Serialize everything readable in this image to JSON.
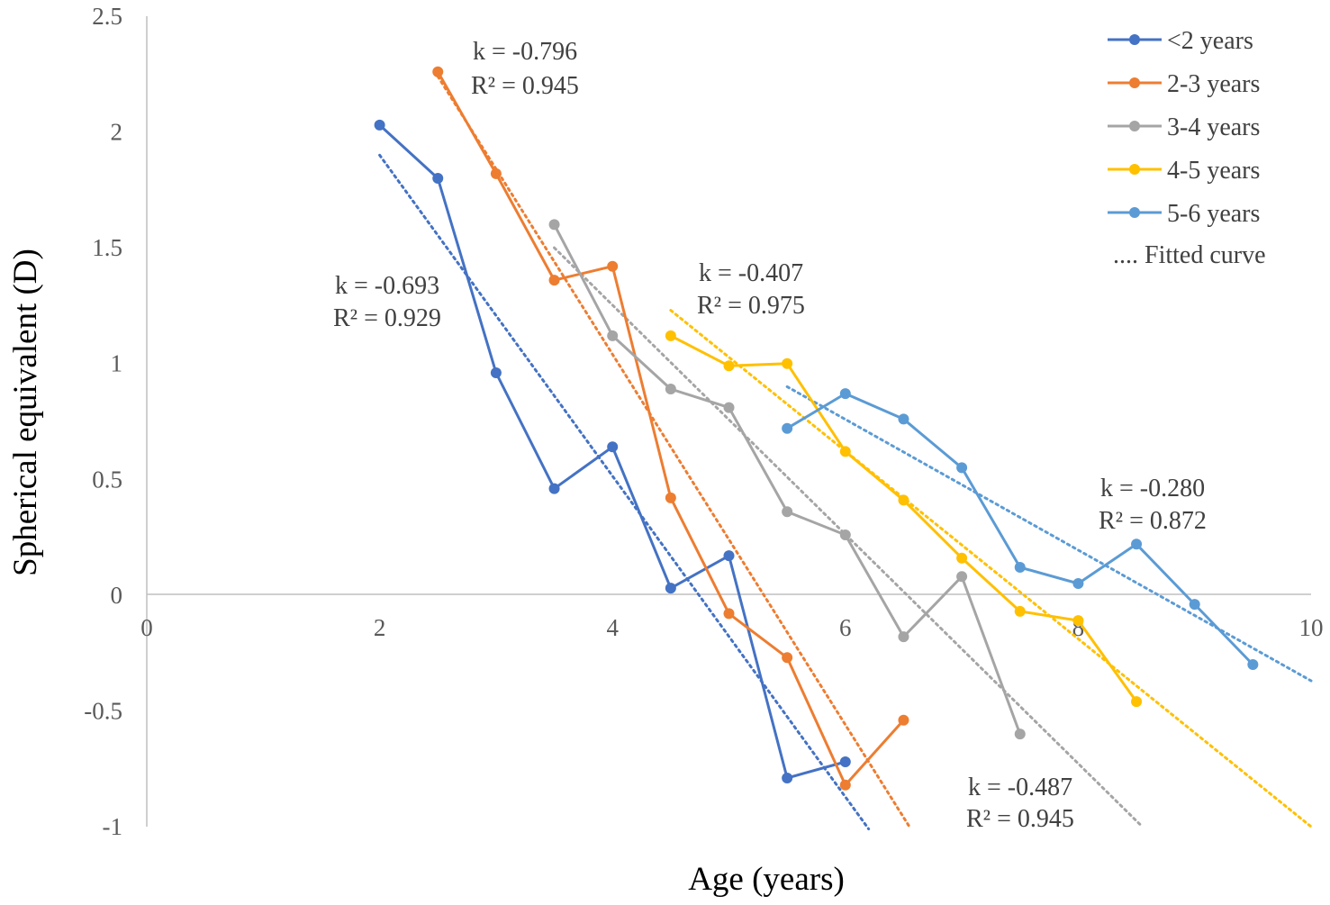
{
  "chart_data": {
    "type": "line",
    "title": "",
    "xlabel": "Age (years)",
    "ylabel": "Spherical equivalent (D)",
    "xlim": [
      0,
      10
    ],
    "ylim": [
      -1,
      2.5
    ],
    "xticks": [
      0,
      2,
      4,
      6,
      8,
      10
    ],
    "yticks": [
      -1,
      -0.5,
      0,
      0.5,
      1,
      1.5,
      2,
      2.5
    ],
    "xtick_labels": [
      "0",
      "2",
      "4",
      "6",
      "8",
      "10"
    ],
    "ytick_labels": [
      "-1",
      "-0.5",
      "0",
      "0.5",
      "1",
      "1.5",
      "2",
      "2.5"
    ],
    "grid": false,
    "legend_position": "top-right",
    "fitted_curve_label": ".... Fitted curve",
    "series": [
      {
        "name": "<2 years",
        "color": "#4472C4",
        "x": [
          2,
          2.5,
          3,
          3.5,
          4,
          4.5,
          5,
          5.5,
          6
        ],
        "y": [
          2.03,
          1.8,
          0.96,
          0.46,
          0.64,
          0.03,
          0.17,
          -0.79,
          -0.72
        ],
        "fit": {
          "x": [
            2,
            6.2
          ],
          "y": [
            1.9,
            -1.01
          ]
        }
      },
      {
        "name": "2-3 years",
        "color": "#ED7D31",
        "x": [
          2.5,
          3,
          3.5,
          4,
          4.5,
          5,
          5.5,
          6,
          6.5
        ],
        "y": [
          2.26,
          1.82,
          1.36,
          1.42,
          0.42,
          -0.08,
          -0.27,
          -0.82,
          -0.54
        ],
        "fit": {
          "x": [
            2.5,
            6.55
          ],
          "y": [
            2.24,
            -1.0
          ]
        }
      },
      {
        "name": "3-4 years",
        "color": "#A5A5A5",
        "x": [
          3.5,
          4,
          4.5,
          5,
          5.5,
          6,
          6.5,
          7,
          7.5
        ],
        "y": [
          1.6,
          1.12,
          0.89,
          0.81,
          0.36,
          0.26,
          -0.18,
          0.08,
          -0.6
        ],
        "fit": {
          "x": [
            3.5,
            8.55
          ],
          "y": [
            1.5,
            -1.0
          ]
        }
      },
      {
        "name": "4-5 years",
        "color": "#FFC000",
        "x": [
          4.5,
          5,
          5.5,
          6,
          6.5,
          7,
          7.5,
          8,
          8.5
        ],
        "y": [
          1.12,
          0.99,
          1.0,
          0.62,
          0.41,
          0.16,
          -0.07,
          -0.11,
          -0.46
        ],
        "fit": {
          "x": [
            4.5,
            10
          ],
          "y": [
            1.23,
            -1.0
          ]
        }
      },
      {
        "name": "5-6 years",
        "color": "#5B9BD5",
        "x": [
          5.5,
          6,
          6.5,
          7,
          7.5,
          8,
          8.5,
          9,
          9.5
        ],
        "y": [
          0.72,
          0.87,
          0.76,
          0.55,
          0.12,
          0.05,
          0.22,
          -0.04,
          -0.3
        ],
        "fit": {
          "x": [
            5.5,
            10
          ],
          "y": [
            0.9,
            -0.37
          ]
        }
      }
    ],
    "annotations": [
      {
        "id": "ann-0",
        "k": "k = -0.693",
        "r2": "R² = 0.929",
        "series": "<2 years"
      },
      {
        "id": "ann-1",
        "k": "k = -0.796",
        "r2": "R² = 0.945",
        "series": "2-3 years"
      },
      {
        "id": "ann-2",
        "k": "k = -0.487",
        "r2": "R² = 0.945",
        "series": "3-4 years"
      },
      {
        "id": "ann-3",
        "k": "k = -0.407",
        "r2": "R² = 0.975",
        "series": "4-5 years"
      },
      {
        "id": "ann-4",
        "k": "k = -0.280",
        "r2": "R² = 0.872",
        "series": "5-6 years"
      }
    ]
  }
}
